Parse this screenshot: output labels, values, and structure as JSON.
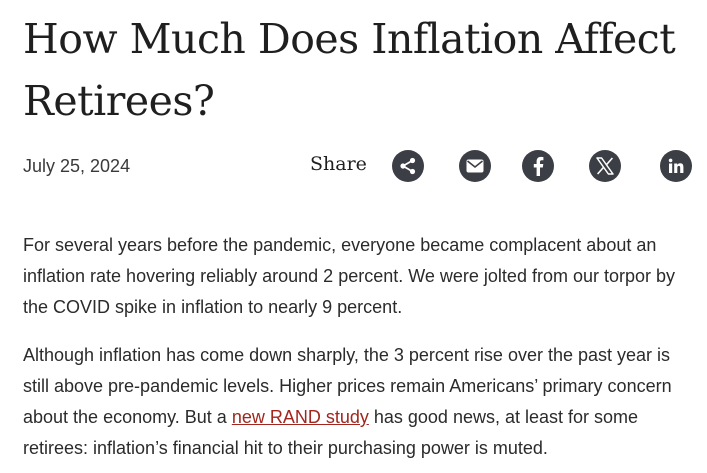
{
  "article": {
    "title": "How Much Does Inflation Affect Retirees?",
    "date": "July 25, 2024",
    "share_label": "Share"
  },
  "share_icons": [
    "share-icon",
    "email-icon",
    "facebook-icon",
    "x-icon",
    "linkedin-icon"
  ],
  "paragraphs": {
    "p1": "For several years before the pandemic, everyone became complacent about an inflation rate hovering reliably around 2 percent. We were jolted from our torpor by the COVID spike in inflation to nearly 9 percent.",
    "p2_before": "Although inflation has come down sharply, the 3 percent rise over the past year is still above pre-pandemic levels. Higher prices remain Americans’ primary concern about the economy. But a ",
    "p2_link": "new RAND study",
    "p2_after": " has good news, at least for some retirees: inflation’s financial hit to their purchasing power is muted."
  },
  "colors": {
    "link": "#a1261e",
    "icon_bg": "#3b3e44",
    "text": "#2b2b2b"
  }
}
